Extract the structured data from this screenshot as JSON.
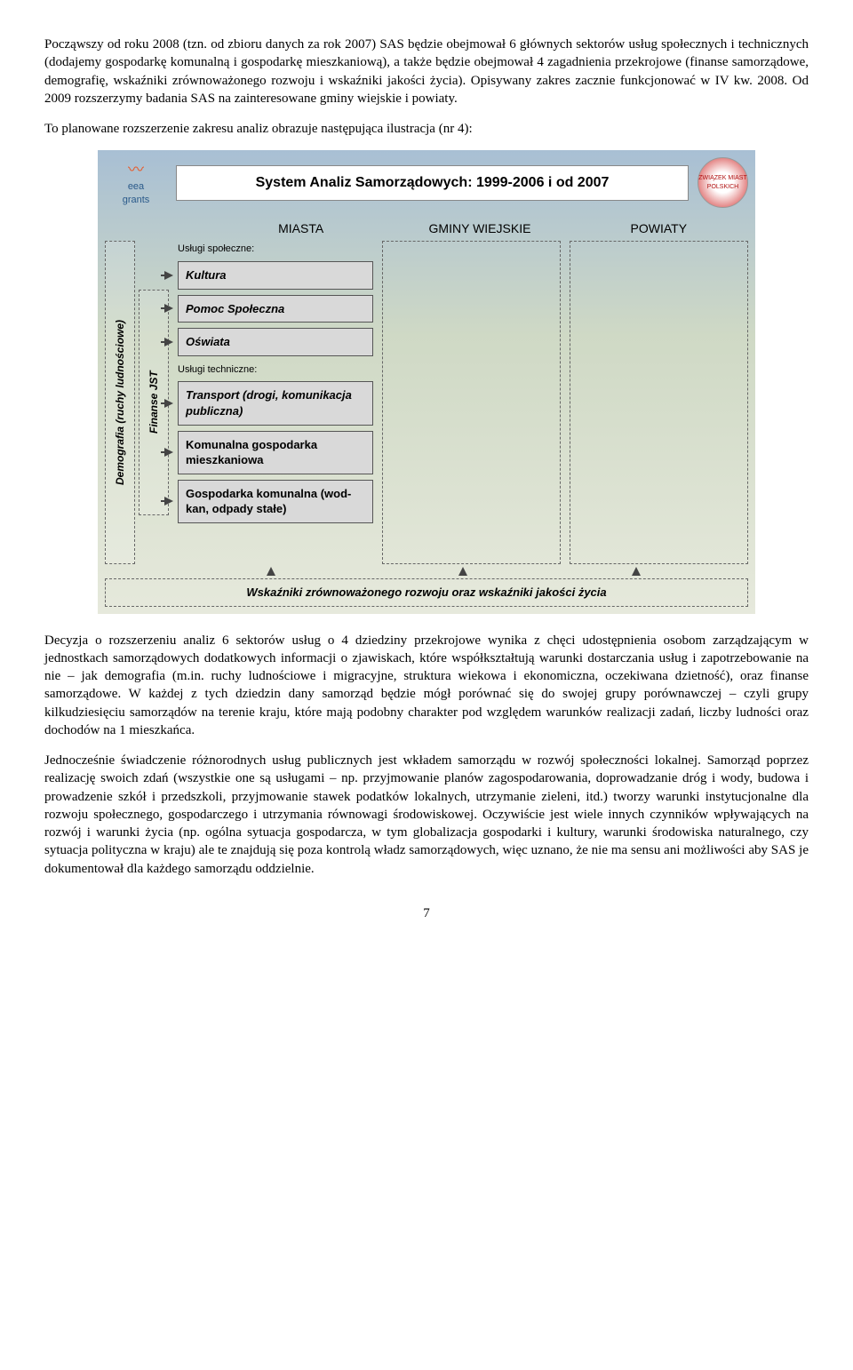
{
  "para1": "Począwszy od roku 2008 (tzn. od zbioru danych za rok 2007) SAS będzie obejmował 6 głównych sektorów usług społecznych i technicznych (dodajemy gospodarkę komunalną i gospodarkę mieszkaniową), a także będzie obejmował 4 zagadnienia przekrojowe (finanse samorządowe, demografię, wskaźniki zrównoważonego rozwoju i wskaźniki jakości życia). Opisywany zakres zacznie funkcjonować w IV kw. 2008. Od 2009 rozszerzymy badania SAS na zainteresowane gminy wiejskie i powiaty.",
  "para2": "To planowane rozszerzenie zakresu analiz obrazuje następująca ilustracja (nr 4):",
  "diagram": {
    "logo_left_top": "eea",
    "logo_left_bot": "grants",
    "title": "System Analiz Samorządowych: 1999-2006 i od 2007",
    "logo_right": "ZWIĄZEK MIAST POLSKICH",
    "col1": "MIASTA",
    "col2": "GMINY WIEJSKIE",
    "col3": "POWIATY",
    "side1": "Demografia (ruchy ludnościowe)",
    "side2": "Finanse JST",
    "sub_social": "Usługi społeczne:",
    "b_kultura": "Kultura",
    "b_pomoc": "Pomoc Społeczna",
    "b_oswiata": "Oświata",
    "sub_tech": "Usługi techniczne:",
    "b_transport": "Transport (drogi, komunikacja publiczna)",
    "b_komunalna": "Komunalna gospodarka mieszkaniowa",
    "b_gospkom": "Gospodarka komunalna (wod-kan, odpady stałe)",
    "bottom": "Wskaźniki zrównoważonego rozwoju oraz wskaźniki jakości życia"
  },
  "para3": "Decyzja o rozszerzeniu analiz 6 sektorów usług o 4 dziedziny przekrojowe wynika z chęci udostępnienia osobom zarządzającym w jednostkach samorządowych dodatkowych informacji o zjawiskach, które współkształtują warunki dostarczania usług i zapotrzebowanie na nie – jak demografia (m.in. ruchy ludnościowe i migracyjne, struktura wiekowa i ekonomiczna, oczekiwana dzietność), oraz finanse samorządowe. W każdej z tych dziedzin dany samorząd będzie mógł porównać się do swojej grupy porównawczej – czyli grupy kilkudziesięciu samorządów na terenie kraju, które mają podobny charakter pod względem warunków realizacji zadań, liczby ludności oraz dochodów na 1 mieszkańca.",
  "para4": "Jednocześnie świadczenie różnorodnych usług publicznych jest wkładem samorządu w rozwój społeczności lokalnej. Samorząd poprzez realizację swoich zdań (wszystkie one są usługami – np. przyjmowanie planów zagospodarowania, doprowadzanie dróg i wody, budowa i prowadzenie szkół i przedszkoli, przyjmowanie stawek podatków lokalnych, utrzymanie zieleni, itd.) tworzy warunki instytucjonalne dla rozwoju społecznego, gospodarczego i utrzymania równowagi środowiskowej. Oczywiście jest wiele innych czynników wpływających na rozwój i warunki życia (np. ogólna sytuacja gospodarcza, w tym globalizacja gospodarki i kultury, warunki środowiska naturalnego, czy sytuacja polityczna w kraju) ale te znajdują się poza kontrolą władz samorządowych, więc uznano, że nie ma sensu ani możliwości aby SAS je dokumentował dla każdego samorządu oddzielnie.",
  "page": "7"
}
